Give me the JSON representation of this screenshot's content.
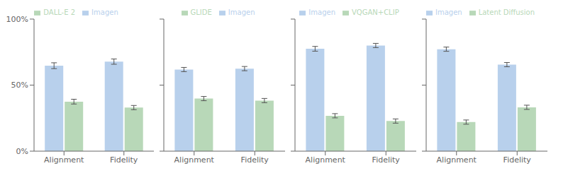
{
  "chart_data": [
    {
      "type": "bar",
      "categories": [
        "Alignment",
        "Fidelity"
      ],
      "series": [
        {
          "name": "Imagen",
          "color": "#b8d0ec",
          "values": [
            0.647,
            0.678
          ],
          "errors": [
            0.022,
            0.02
          ]
        },
        {
          "name": "DALL-E 2",
          "color": "#b8d8b8",
          "values": [
            0.375,
            0.33
          ],
          "errors": [
            0.018,
            0.016
          ]
        }
      ],
      "ylim": [
        0,
        1.0
      ],
      "yticks": [
        {
          "value": 0.0,
          "label": "0%"
        },
        {
          "value": 0.5,
          "label": "50%"
        },
        {
          "value": 1.0,
          "label": "100%"
        }
      ],
      "grid": false,
      "legend": "top"
    },
    {
      "type": "bar",
      "categories": [
        "Alignment",
        "Fidelity"
      ],
      "series": [
        {
          "name": "Imagen",
          "color": "#b8d0ec",
          "values": [
            0.618,
            0.625
          ],
          "errors": [
            0.016,
            0.016
          ]
        },
        {
          "name": "GLIDE",
          "color": "#b8d8b8",
          "values": [
            0.398,
            0.383
          ],
          "errors": [
            0.016,
            0.016
          ]
        }
      ],
      "ylim": [
        0,
        1.0
      ],
      "yticks": [
        {
          "value": 0.0,
          "label": "0%"
        },
        {
          "value": 0.5,
          "label": "50%"
        },
        {
          "value": 1.0,
          "label": "100%"
        }
      ],
      "grid": false,
      "legend": "top",
      "tick_labels": "x"
    },
    {
      "type": "bar",
      "categories": [
        "Alignment",
        "Fidelity"
      ],
      "series": [
        {
          "name": "Imagen",
          "color": "#b8d0ec",
          "values": [
            0.775,
            0.8
          ],
          "errors": [
            0.018,
            0.016
          ]
        },
        {
          "name": "VQGAN+CLIP",
          "color": "#b8d8b8",
          "values": [
            0.268,
            0.228
          ],
          "errors": [
            0.016,
            0.016
          ]
        }
      ],
      "ylim": [
        0,
        1.0
      ],
      "yticks": [
        {
          "value": 0.0,
          "label": "0%"
        },
        {
          "value": 0.5,
          "label": "50%"
        },
        {
          "value": 1.0,
          "label": "100%"
        }
      ],
      "grid": false,
      "legend": "top",
      "tick_labels": "x"
    },
    {
      "type": "bar",
      "categories": [
        "Alignment",
        "Fidelity"
      ],
      "series": [
        {
          "name": "Imagen",
          "color": "#b8d0ec",
          "values": [
            0.772,
            0.655
          ],
          "errors": [
            0.016,
            0.016
          ]
        },
        {
          "name": "Latent Diffusion",
          "color": "#b8d8b8",
          "values": [
            0.22,
            0.332
          ],
          "errors": [
            0.016,
            0.016
          ]
        }
      ],
      "ylim": [
        0,
        1.0
      ],
      "yticks": [
        {
          "value": 0.0,
          "label": "0%"
        },
        {
          "value": 0.5,
          "label": "50%"
        },
        {
          "value": 1.0,
          "label": "100%"
        }
      ],
      "grid": false,
      "legend": "top",
      "tick_labels": "x"
    }
  ]
}
